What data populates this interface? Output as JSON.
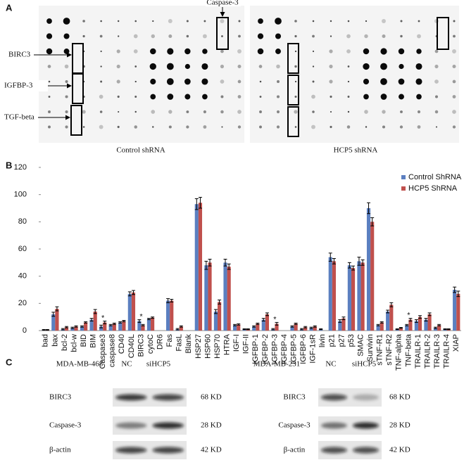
{
  "panel_labels": [
    "A",
    "B",
    "C"
  ],
  "panel_a": {
    "box_label_top": "Caspase-3",
    "row_labels": [
      "BIRC3",
      "IGFBP-3",
      "TGF-beta"
    ],
    "captions": [
      "Control shRNA",
      "HCP5 shRNA"
    ]
  },
  "chart_data": {
    "type": "bar",
    "categories": [
      "bad",
      "bax",
      "bcl-2",
      "bcl-w",
      "BID",
      "BIM",
      "Caspase3",
      "caspase8",
      "CD40",
      "CD40L",
      "BIRC3",
      "cytoC",
      "DR6",
      "Fas",
      "FasL",
      "Blank",
      "HSP27",
      "HSP60",
      "HSP70",
      "HTRA",
      "IGF-I",
      "IGF-II",
      "IGFBP-1",
      "IGFBP-2",
      "IGFBP-3",
      "IGFBP-4",
      "IGFBP-5",
      "IGFBP-6",
      "IGF-1sR",
      "livin",
      "p21",
      "p27",
      "p53",
      "SMAC",
      "Survivin",
      "sTNF-R1",
      "sTNF-R2",
      "TNF-alpha",
      "TNF-beta",
      "TRAILR-1",
      "TRAILR-2",
      "TRAILR-3",
      "TRAILR-4",
      "XIAP"
    ],
    "series": [
      {
        "name": "Control  ShRNA",
        "color": "#5b7fc0",
        "values": [
          0.5,
          12,
          1,
          2,
          3,
          8,
          3,
          4,
          6,
          27,
          7,
          8.5,
          0,
          22,
          1,
          0,
          93,
          48,
          14,
          50,
          4,
          1,
          3,
          8,
          1,
          0,
          3,
          1,
          2,
          1,
          54,
          7,
          48,
          51,
          90,
          4,
          14,
          1,
          4,
          7,
          8,
          2,
          1,
          30
        ],
        "errors": [
          0.3,
          1.5,
          0.5,
          0.5,
          0.5,
          1,
          1,
          0.5,
          0.5,
          1.5,
          1,
          0.5,
          0,
          1.5,
          0.5,
          0,
          4,
          3,
          1.5,
          2.5,
          0.5,
          0.3,
          0.5,
          1,
          0.5,
          0,
          0.5,
          0.5,
          0.5,
          0.3,
          3,
          1,
          2,
          3,
          4,
          0.5,
          1,
          0.3,
          0.5,
          1,
          1,
          0.5,
          0.3,
          2
        ]
      },
      {
        "name": "HCP5 ShRNA",
        "color": "#c0504d",
        "values": [
          0.5,
          16,
          2.5,
          3,
          6,
          14,
          6,
          5,
          7,
          28,
          4,
          9.5,
          0,
          22,
          3,
          0,
          94,
          50,
          21,
          47,
          4.5,
          1,
          5,
          12,
          5,
          0,
          5,
          2.5,
          3,
          0,
          51,
          9,
          46,
          50,
          80,
          6,
          19,
          2,
          8,
          10,
          12,
          4,
          1,
          27
        ],
        "errors": [
          0.3,
          1.5,
          0.5,
          0.5,
          0.5,
          1.5,
          1,
          0.5,
          0.5,
          1.5,
          0.5,
          0.5,
          0,
          1,
          0.5,
          0,
          4,
          2.5,
          1.5,
          2,
          0.5,
          0.3,
          0.5,
          1,
          1,
          0,
          0.5,
          0.5,
          0.5,
          0,
          2,
          1,
          1.5,
          2,
          3,
          0.5,
          1.5,
          0.3,
          1,
          1,
          1,
          0.5,
          0.3,
          2
        ]
      }
    ],
    "ylim": [
      0,
      120
    ],
    "yticks": [
      0,
      20,
      40,
      60,
      80,
      100,
      120
    ],
    "annotations": [
      {
        "text": "*",
        "x": "Caspase3",
        "y": 9
      },
      {
        "text": "*",
        "x": "BIRC3",
        "y": 10
      },
      {
        "text": "*",
        "x": "IGFBP-3",
        "y": 8
      },
      {
        "text": "*",
        "x": "TNF-beta",
        "y": 11
      }
    ],
    "legend": "upper right"
  },
  "panel_c": {
    "blots": [
      {
        "cell_line": "MDA-MB-468",
        "lanes": [
          "NC",
          "siHCP5"
        ],
        "rows": [
          {
            "label": "BIRC3",
            "size": "68 KD"
          },
          {
            "label": "Caspase-3",
            "size": "28 KD"
          },
          {
            "label": "β-actin",
            "size": "42 KD"
          }
        ]
      },
      {
        "cell_line": "MDA-MB-231",
        "lanes": [
          "NC",
          "siHCP5"
        ],
        "rows": [
          {
            "label": "BIRC3",
            "size": "68 KD"
          },
          {
            "label": "Caspase-3",
            "size": "28 KD"
          },
          {
            "label": "β-actin",
            "size": "42 KD"
          }
        ]
      }
    ]
  }
}
